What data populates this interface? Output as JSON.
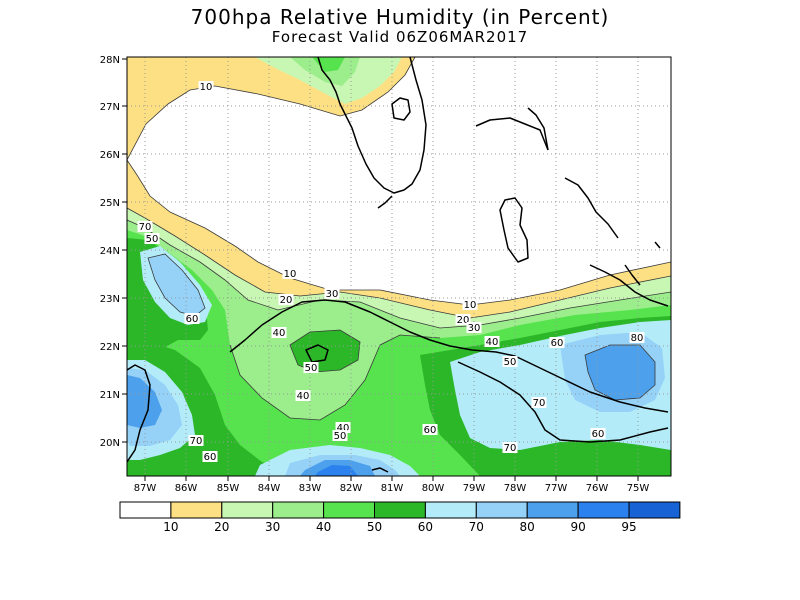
{
  "title": "700hpa Relative Humidity (in Percent)",
  "subtitle": "Forecast Valid  06Z06MAR2017",
  "y_ticks": [
    "28N",
    "27N",
    "26N",
    "25N",
    "24N",
    "23N",
    "22N",
    "21N",
    "20N"
  ],
  "x_ticks": [
    "87W",
    "86W",
    "85W",
    "84W",
    "83W",
    "82W",
    "81W",
    "80W",
    "79W",
    "78W",
    "77W",
    "76W",
    "75W"
  ],
  "legend": {
    "labels": [
      "10",
      "20",
      "30",
      "40",
      "50",
      "60",
      "70",
      "80",
      "90",
      "95"
    ],
    "colors": [
      "#ffffff",
      "#fde083",
      "#c8f7b3",
      "#9cee8c",
      "#57e34e",
      "#2cb728",
      "#b3ecf8",
      "#96d2f8",
      "#4ca0ec",
      "#2b81ee",
      "#1762d4"
    ]
  },
  "contour_labels": [
    "10",
    "10",
    "10",
    "20",
    "20",
    "30",
    "30",
    "40",
    "40",
    "40",
    "40",
    "50",
    "50",
    "50",
    "50",
    "60",
    "60",
    "60",
    "60",
    "60",
    "70",
    "70",
    "70",
    "70",
    "80"
  ]
}
